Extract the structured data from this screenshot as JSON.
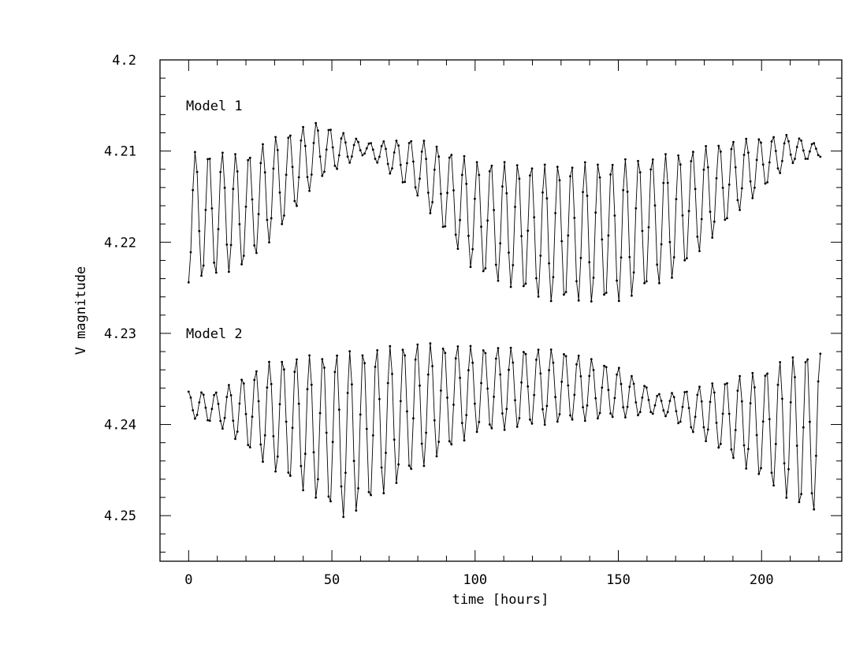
{
  "chart_data": {
    "type": "line",
    "xlabel": "time [hours]",
    "ylabel": "V magnitude",
    "xlim": [
      -10,
      228
    ],
    "ylim": [
      4.255,
      4.2
    ],
    "y_inverted": true,
    "grid": false,
    "legend": "none",
    "x_ticks": [
      0,
      50,
      100,
      150,
      200
    ],
    "x_tick_labels": [
      "0",
      "50",
      "100",
      "150",
      "200"
    ],
    "y_ticks": [
      4.2,
      4.21,
      4.22,
      4.23,
      4.24,
      4.25
    ],
    "y_tick_labels": [
      "4.2",
      "4.21",
      "4.22",
      "4.23",
      "4.24",
      "4.25"
    ],
    "x_minor_step": 10,
    "y_minor_step": 0.002,
    "sampling_hours": 0.74,
    "x_range": [
      0,
      221
    ],
    "annotations": [
      "Model 1",
      "Model 2"
    ],
    "series": [
      {
        "label": "Model 1",
        "mean": 4.2165,
        "pulsation_period_hours": 4.69,
        "amplitude_minmax_hours": [
          0,
          221
        ],
        "envelope": [
          {
            "x": 0,
            "half_amp": 0.0072
          },
          {
            "x": 10,
            "half_amp": 0.0068
          },
          {
            "x": 30,
            "half_amp": 0.0055
          },
          {
            "x": 45,
            "half_amp": 0.0032
          },
          {
            "x": 62,
            "half_amp": 0.0006
          },
          {
            "x": 80,
            "half_amp": 0.0032
          },
          {
            "x": 100,
            "half_amp": 0.0062
          },
          {
            "x": 125,
            "half_amp": 0.0075
          },
          {
            "x": 150,
            "half_amp": 0.0078
          },
          {
            "x": 170,
            "half_amp": 0.0068
          },
          {
            "x": 190,
            "half_amp": 0.0042
          },
          {
            "x": 210,
            "half_amp": 0.0016
          },
          {
            "x": 221,
            "half_amp": 0.0006
          }
        ],
        "trend": [
          {
            "x": 0,
            "mean": 4.2172
          },
          {
            "x": 20,
            "mean": 4.2165
          },
          {
            "x": 45,
            "mean": 4.21
          },
          {
            "x": 62,
            "mean": 4.2097
          },
          {
            "x": 80,
            "mean": 4.2118
          },
          {
            "x": 100,
            "mean": 4.2172
          },
          {
            "x": 125,
            "mean": 4.219
          },
          {
            "x": 150,
            "mean": 4.2188
          },
          {
            "x": 170,
            "mean": 4.217
          },
          {
            "x": 190,
            "mean": 4.213
          },
          {
            "x": 210,
            "mean": 4.2098
          },
          {
            "x": 221,
            "mean": 4.21
          }
        ]
      },
      {
        "label": "Model 2",
        "pulsation_period_hours": 4.69,
        "envelope": [
          {
            "x": 0,
            "half_amp": 0.0014
          },
          {
            "x": 10,
            "half_amp": 0.0018
          },
          {
            "x": 30,
            "half_amp": 0.0062
          },
          {
            "x": 55,
            "half_amp": 0.0092
          },
          {
            "x": 80,
            "half_amp": 0.007
          },
          {
            "x": 100,
            "half_amp": 0.0048
          },
          {
            "x": 130,
            "half_amp": 0.004
          },
          {
            "x": 150,
            "half_amp": 0.0028
          },
          {
            "x": 165,
            "half_amp": 0.001
          },
          {
            "x": 180,
            "half_amp": 0.003
          },
          {
            "x": 200,
            "half_amp": 0.006
          },
          {
            "x": 215,
            "half_amp": 0.0088
          },
          {
            "x": 221,
            "half_amp": 0.0088
          }
        ],
        "trend": [
          {
            "x": 0,
            "mean": 4.2378
          },
          {
            "x": 30,
            "mean": 4.239
          },
          {
            "x": 55,
            "mean": 4.2412
          },
          {
            "x": 80,
            "mean": 4.238
          },
          {
            "x": 100,
            "mean": 4.2362
          },
          {
            "x": 130,
            "mean": 4.2358
          },
          {
            "x": 150,
            "mean": 4.2365
          },
          {
            "x": 165,
            "mean": 4.2378
          },
          {
            "x": 185,
            "mean": 4.239
          },
          {
            "x": 200,
            "mean": 4.24
          },
          {
            "x": 221,
            "mean": 4.241
          }
        ]
      }
    ]
  }
}
